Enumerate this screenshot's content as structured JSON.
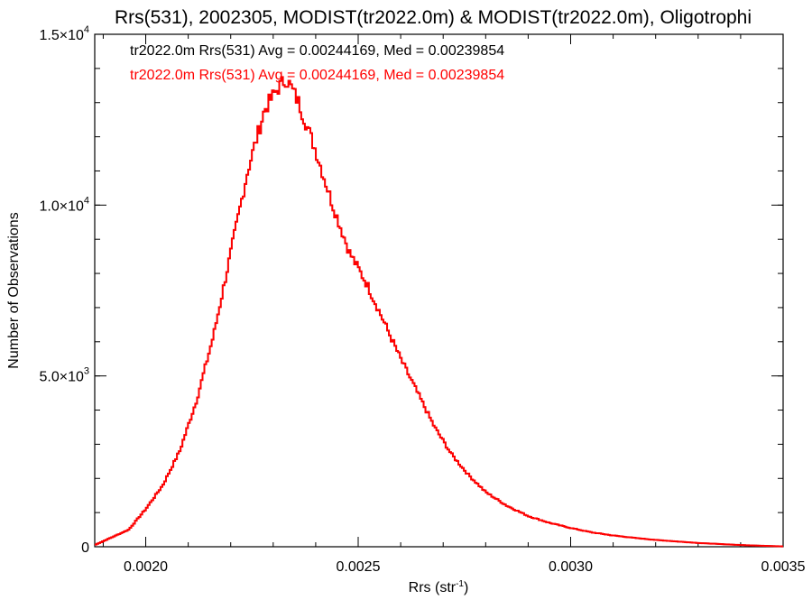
{
  "chart_data": {
    "type": "histogram",
    "title": "Rrs(531), 2002305, MODIST(tr2022.0m) & MODIST(tr2022.0m), Oligotrophi",
    "xlabel": "Rrs (str",
    "xlabel_sup": "-1",
    "xlabel_end": ")",
    "ylabel": "Number of Observations",
    "xlim": [
      0.00188,
      0.0035
    ],
    "ylim": [
      0,
      15000
    ],
    "x_ticks": [
      {
        "value": 0.002,
        "label": "0.0020"
      },
      {
        "value": 0.0025,
        "label": "0.0025"
      },
      {
        "value": 0.003,
        "label": "0.0030"
      },
      {
        "value": 0.0035,
        "label": "0.0035"
      }
    ],
    "x_minor_step": 0.0001,
    "y_ticks": [
      {
        "value": 0,
        "mant": "0",
        "exp": ""
      },
      {
        "value": 5000,
        "mant": "5.0×10",
        "exp": "3"
      },
      {
        "value": 10000,
        "mant": "1.0×10",
        "exp": "4"
      },
      {
        "value": 15000,
        "mant": "1.5×10",
        "exp": "4"
      }
    ],
    "y_minor_step": 1000,
    "grid": false,
    "legend_position": "top-left",
    "series": [
      {
        "name": "tr2022.0m Rrs(531) Avg = 0.00244169, Med = 0.00239854",
        "color": "#000000",
        "x": [
          0.00188,
          0.00196,
          0.002,
          0.00204,
          0.00208,
          0.00212,
          0.00216,
          0.0022,
          0.00224,
          0.00228,
          0.00231,
          0.00233,
          0.00234,
          0.00236,
          0.00238,
          0.0024,
          0.00244,
          0.00248,
          0.00252,
          0.00256,
          0.0026,
          0.00264,
          0.00268,
          0.00272,
          0.00276,
          0.0028,
          0.00285,
          0.0029,
          0.00295,
          0.003,
          0.00305,
          0.0031,
          0.00315,
          0.0032,
          0.0033,
          0.0034,
          0.0035
        ],
        "y": [
          50,
          500,
          1100,
          1800,
          2800,
          4300,
          6200,
          8600,
          11000,
          12800,
          13400,
          13700,
          13500,
          13000,
          12300,
          11600,
          10000,
          8600,
          7700,
          6600,
          5500,
          4500,
          3500,
          2700,
          2100,
          1600,
          1200,
          900,
          700,
          550,
          420,
          330,
          260,
          200,
          110,
          50,
          10
        ]
      },
      {
        "name": "tr2022.0m Rrs(531) Avg = 0.00244169, Med = 0.00239854",
        "color": "#ff0000",
        "x": [
          0.00188,
          0.00196,
          0.002,
          0.00204,
          0.00208,
          0.00212,
          0.00216,
          0.0022,
          0.00224,
          0.00228,
          0.00231,
          0.00233,
          0.00234,
          0.00236,
          0.00238,
          0.0024,
          0.00244,
          0.00248,
          0.00252,
          0.00256,
          0.0026,
          0.00264,
          0.00268,
          0.00272,
          0.00276,
          0.0028,
          0.00285,
          0.0029,
          0.00295,
          0.003,
          0.00305,
          0.0031,
          0.00315,
          0.0032,
          0.0033,
          0.0034,
          0.0035
        ],
        "y": [
          50,
          500,
          1100,
          1800,
          2800,
          4300,
          6200,
          8600,
          11000,
          12800,
          13400,
          13700,
          13500,
          13000,
          12300,
          11600,
          10000,
          8600,
          7700,
          6600,
          5500,
          4500,
          3500,
          2700,
          2100,
          1600,
          1200,
          900,
          700,
          550,
          420,
          330,
          260,
          200,
          110,
          50,
          10
        ]
      }
    ]
  }
}
